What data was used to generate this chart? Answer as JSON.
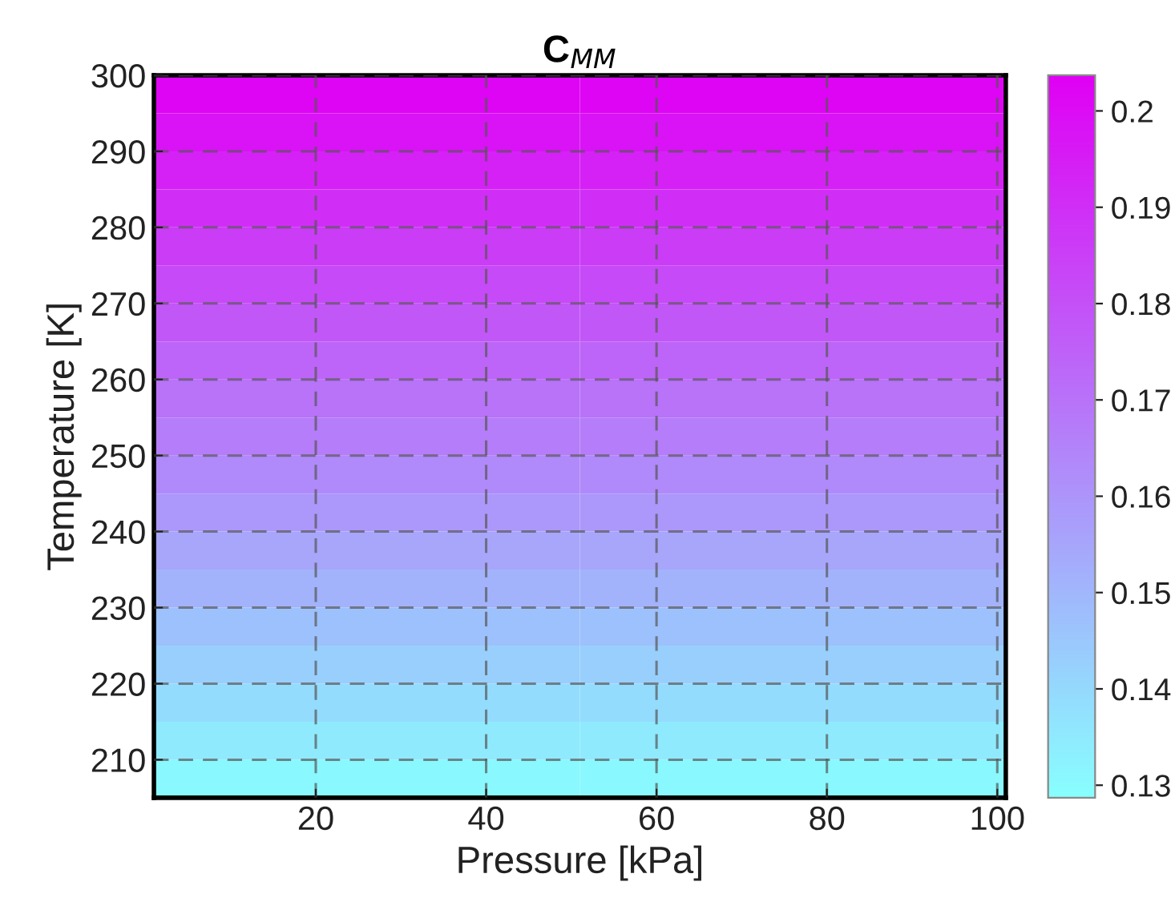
{
  "chart_data": {
    "type": "heatmap",
    "title": "C$_{MM}$",
    "xlabel": "Pressure [kPa]",
    "ylabel": "Temperature [K]",
    "x": [
      26,
      76
    ],
    "y": [
      207.5,
      212.5,
      217.5,
      222.5,
      227.5,
      232.5,
      237.5,
      242.5,
      247.5,
      252.5,
      257.5,
      262.5,
      267.5,
      272.5,
      277.5,
      282.5,
      287.5,
      292.5,
      297.5
    ],
    "cells": [
      [
        0.131,
        0.131
      ],
      [
        0.135,
        0.135
      ],
      [
        0.139,
        0.139
      ],
      [
        0.143,
        0.143
      ],
      [
        0.147,
        0.147
      ],
      [
        0.151,
        0.151
      ],
      [
        0.155,
        0.155
      ],
      [
        0.159,
        0.159
      ],
      [
        0.163,
        0.163
      ],
      [
        0.167,
        0.167
      ],
      [
        0.17,
        0.17
      ],
      [
        0.174,
        0.174
      ],
      [
        0.178,
        0.178
      ],
      [
        0.182,
        0.182
      ],
      [
        0.186,
        0.186
      ],
      [
        0.19,
        0.19
      ],
      [
        0.194,
        0.194
      ],
      [
        0.198,
        0.198
      ],
      [
        0.202,
        0.202
      ]
    ],
    "xlim": [
      1,
      101
    ],
    "ylim": [
      205,
      300
    ],
    "xticks": [
      20,
      40,
      60,
      80,
      100
    ],
    "yticks": [
      210,
      220,
      230,
      240,
      250,
      260,
      270,
      280,
      290,
      300
    ],
    "clim": [
      0.1287,
      0.2037
    ],
    "cticks": [
      0.13,
      0.14,
      0.15,
      0.16,
      0.17,
      0.18,
      0.19,
      0.2
    ],
    "grid": true
  }
}
